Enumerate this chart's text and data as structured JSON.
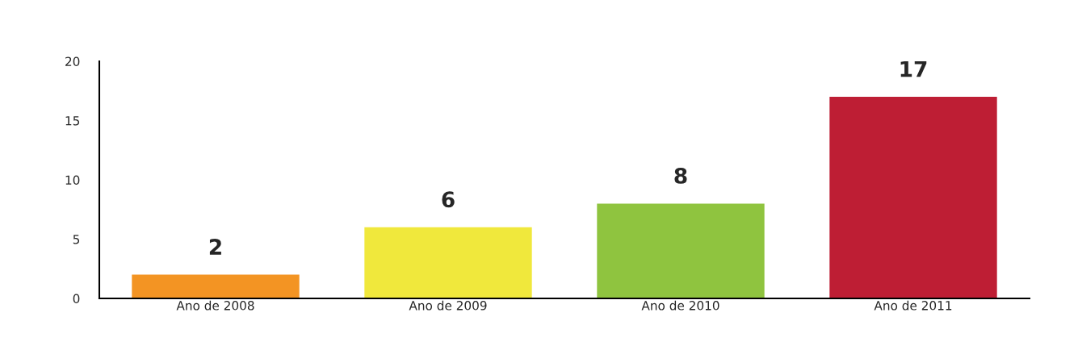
{
  "chart_data": {
    "type": "bar",
    "categories": [
      "Ano de 2008",
      "Ano de 2009",
      "Ano de 2010",
      "Ano de 2011"
    ],
    "values": [
      2,
      6,
      8,
      17
    ],
    "colors": [
      "#f39423",
      "#f0e83c",
      "#8fc43f",
      "#be1e34"
    ],
    "ylim": [
      0,
      20
    ],
    "yticks": [
      0,
      5,
      10,
      15,
      20
    ],
    "data_labels": true,
    "grid": false
  }
}
